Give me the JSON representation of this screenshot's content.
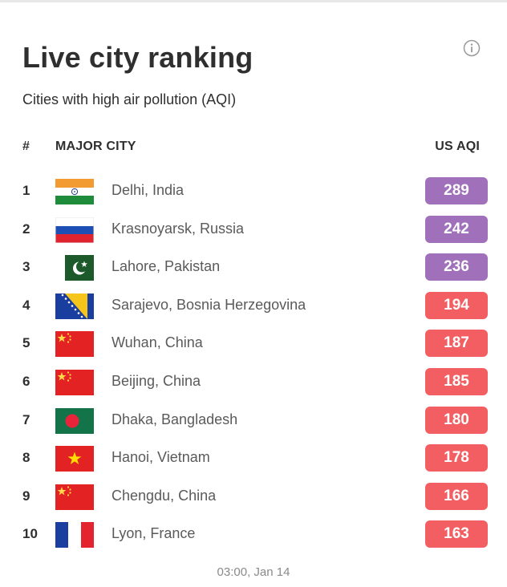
{
  "widget": {
    "title": "Live city ranking",
    "subtitle": "Cities with high air pollution (AQI)",
    "info_icon": "info-circle-icon"
  },
  "table": {
    "columns": {
      "rank": "#",
      "city": "MAJOR CITY",
      "aqi": "US AQI"
    },
    "rows": [
      {
        "rank": "1",
        "city": "Delhi, India",
        "aqi": "289",
        "flag": "india-flag-icon",
        "level": "purple"
      },
      {
        "rank": "2",
        "city": "Krasnoyarsk, Russia",
        "aqi": "242",
        "flag": "russia-flag-icon",
        "level": "purple"
      },
      {
        "rank": "3",
        "city": "Lahore, Pakistan",
        "aqi": "236",
        "flag": "pakistan-flag-icon",
        "level": "purple"
      },
      {
        "rank": "4",
        "city": "Sarajevo, Bosnia Herzegovina",
        "aqi": "194",
        "flag": "bosnia-flag-icon",
        "level": "red"
      },
      {
        "rank": "5",
        "city": "Wuhan, China",
        "aqi": "187",
        "flag": "china-flag-icon",
        "level": "red"
      },
      {
        "rank": "6",
        "city": "Beijing, China",
        "aqi": "185",
        "flag": "china-flag-icon",
        "level": "red"
      },
      {
        "rank": "7",
        "city": "Dhaka, Bangladesh",
        "aqi": "180",
        "flag": "bangladesh-flag-icon",
        "level": "red"
      },
      {
        "rank": "8",
        "city": "Hanoi, Vietnam",
        "aqi": "178",
        "flag": "vietnam-flag-icon",
        "level": "red"
      },
      {
        "rank": "9",
        "city": "Chengdu, China",
        "aqi": "166",
        "flag": "china-flag-icon",
        "level": "red"
      },
      {
        "rank": "10",
        "city": "Lyon, France",
        "aqi": "163",
        "flag": "france-flag-icon",
        "level": "red"
      }
    ]
  },
  "footer": {
    "timestamp": "03:00, Jan 14"
  },
  "colors": {
    "purple": "#a070ba",
    "red": "#f35e62"
  }
}
